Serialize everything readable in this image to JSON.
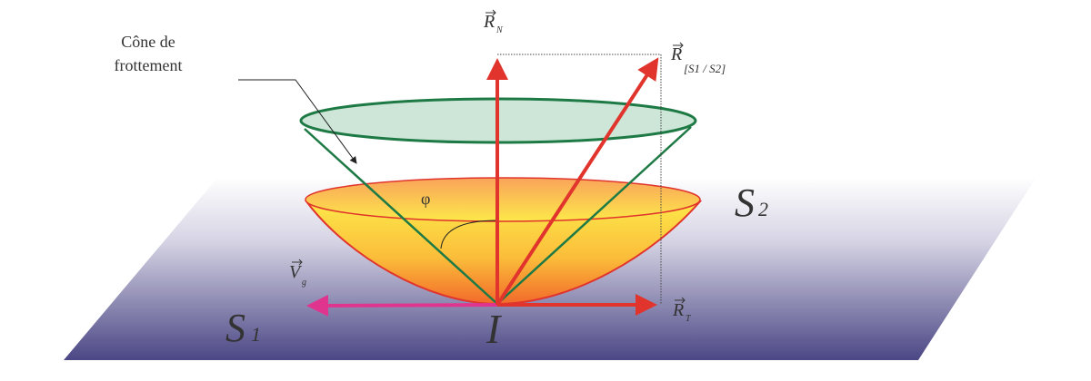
{
  "labels": {
    "cone_label_line1": "Cône de",
    "cone_label_line2": "frottement",
    "normal_reaction": "R",
    "normal_sub": "N",
    "total_reaction": "R",
    "total_sub": "[S1 / S2]",
    "tangential_reaction": "R",
    "tangential_sub": "T",
    "sliding_velocity": "V",
    "sliding_sub": "g",
    "angle": "φ",
    "contact_point": "I",
    "solid1": "S",
    "solid1_sub": "1",
    "solid2": "S",
    "solid2_sub": "2"
  },
  "colors": {
    "friction_cone": "#1e7a45",
    "friction_cone_fill": "#cde6d8",
    "reaction_vectors": "#e0342c",
    "sliding_velocity": "#e0358f",
    "bowl_top": "#fde84a",
    "bowl_bottom": "#f26a2a",
    "plane_top": "#ffffff",
    "plane_bottom": "#4b4785"
  }
}
